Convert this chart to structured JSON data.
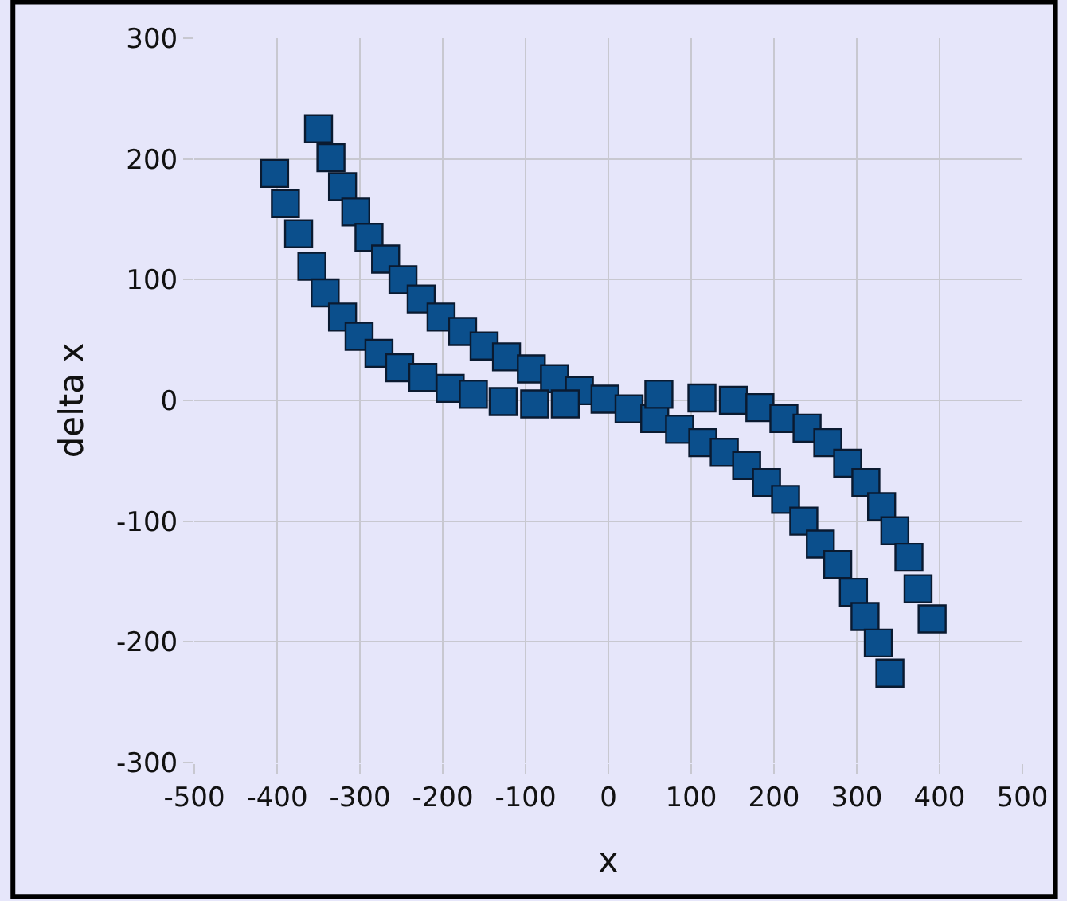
{
  "chart_data": {
    "type": "scatter",
    "xlabel": "x",
    "ylabel": "delta x",
    "x": [
      -350,
      -335,
      -321,
      -305,
      -289,
      -269,
      -248,
      -226,
      -202,
      -176,
      -150,
      -123,
      -93,
      -65,
      -35,
      -4,
      25,
      56,
      86,
      114,
      140,
      167,
      191,
      214,
      236,
      256,
      277,
      296,
      310,
      326,
      340,
      -403,
      -390,
      -374,
      -358,
      -342,
      -321,
      -301,
      -277,
      -252,
      -224,
      -191,
      -163,
      -127,
      -89,
      -52,
      61,
      113,
      151,
      183,
      212,
      240,
      265,
      289,
      311,
      330,
      346,
      363,
      374,
      391
    ],
    "series": [
      {
        "color": "#0b4f8c",
        "values": [
          225,
          201,
          177,
          156,
          135,
          117,
          100,
          84,
          69,
          57,
          45,
          36,
          26,
          18,
          8,
          1,
          -7,
          -15,
          -24,
          -35,
          -43,
          -54,
          -68,
          -82,
          -100,
          -119,
          -136,
          -159,
          -179,
          -201,
          -226,
          188,
          163,
          138,
          111,
          89,
          69,
          53,
          39,
          27,
          19,
          10,
          5,
          -1,
          -3,
          -3,
          5,
          2,
          0,
          -6,
          -15,
          -23,
          -35,
          -52,
          -68,
          -88,
          -108,
          -130,
          -156,
          -181
        ]
      }
    ],
    "xlim": [
      -500,
      500
    ],
    "xticks": [
      -500,
      -400,
      -300,
      -200,
      -100,
      0,
      100,
      200,
      300,
      400,
      500
    ],
    "ylim": [
      -300,
      300
    ],
    "yticks": [
      -300,
      -200,
      -100,
      0,
      100,
      200,
      300
    ],
    "grid": true,
    "legend": false,
    "marker": "square"
  }
}
